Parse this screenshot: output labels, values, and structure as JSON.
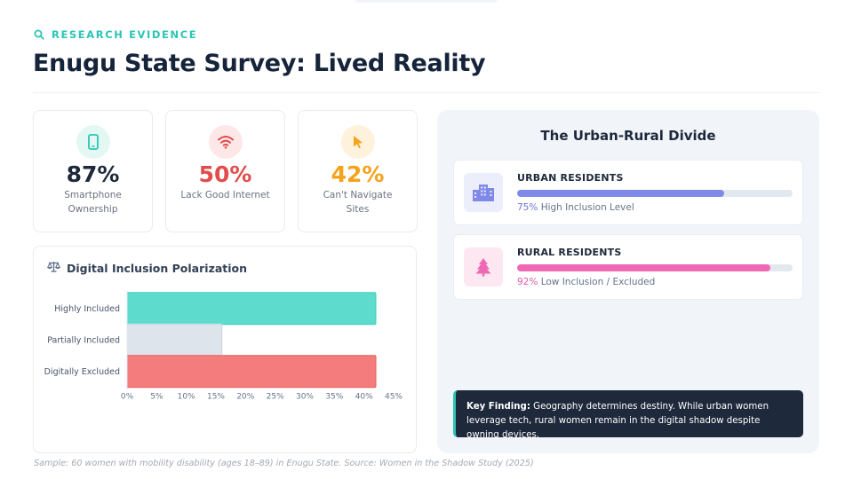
{
  "header": {
    "eyebrow": "RESEARCH EVIDENCE",
    "title": "Enugu State Survey: Lived Reality"
  },
  "stats": [
    {
      "value": "87%",
      "label": "Smartphone Ownership",
      "icon": "smartphone-icon",
      "color": "#2cc5b5",
      "bg": "#e3f7f3"
    },
    {
      "value": "50%",
      "label": "Lack Good Internet",
      "icon": "wifi-icon",
      "color": "#e24c4c",
      "bg": "#fde7e7"
    },
    {
      "value": "42%",
      "label": "Can't Navigate Sites",
      "icon": "cursor-icon",
      "color": "#f5a21c",
      "bg": "#fef2dd"
    }
  ],
  "chart": {
    "title": "Digital Inclusion Polarization",
    "icon": "scale-icon"
  },
  "chart_data": {
    "type": "bar",
    "orientation": "horizontal",
    "categories": [
      "Highly Included",
      "Partially Included",
      "Digitally Excluded"
    ],
    "values": [
      42,
      16,
      42
    ],
    "colors": [
      "#5ddccd",
      "#dde4ec",
      "#f47c7c"
    ],
    "xlim": [
      0,
      45
    ],
    "xticks": [
      "0%",
      "5%",
      "10%",
      "15%",
      "20%",
      "25%",
      "30%",
      "35%",
      "40%",
      "45%"
    ],
    "grid": false,
    "legend": "none"
  },
  "divide": {
    "title": "The Urban-Rural Divide",
    "urban": {
      "label": "URBAN RESIDENTS",
      "pct": "75%",
      "caption": "High Inclusion Level",
      "level": 0.75,
      "color": "#7f89e8",
      "pct_color": "#6874e0",
      "icon": "building-icon",
      "icon_bg": "#eceefb"
    },
    "rural": {
      "label": "RURAL RESIDENTS",
      "pct": "92%",
      "caption": "Low Inclusion / Excluded",
      "level": 0.92,
      "color": "#ee68b3",
      "pct_color": "#e05aa6",
      "icon": "tree-icon",
      "icon_bg": "#fde8f2"
    },
    "key_finding": {
      "label": "Key Finding:",
      "text": "Geography determines destiny. While urban women leverage tech, rural women remain in the digital shadow despite owning devices."
    }
  },
  "footnote": "Sample: 60 women with mobility disability (ages 18–89) in Enugu State. Source: Women in the Shadow Study (2025)"
}
